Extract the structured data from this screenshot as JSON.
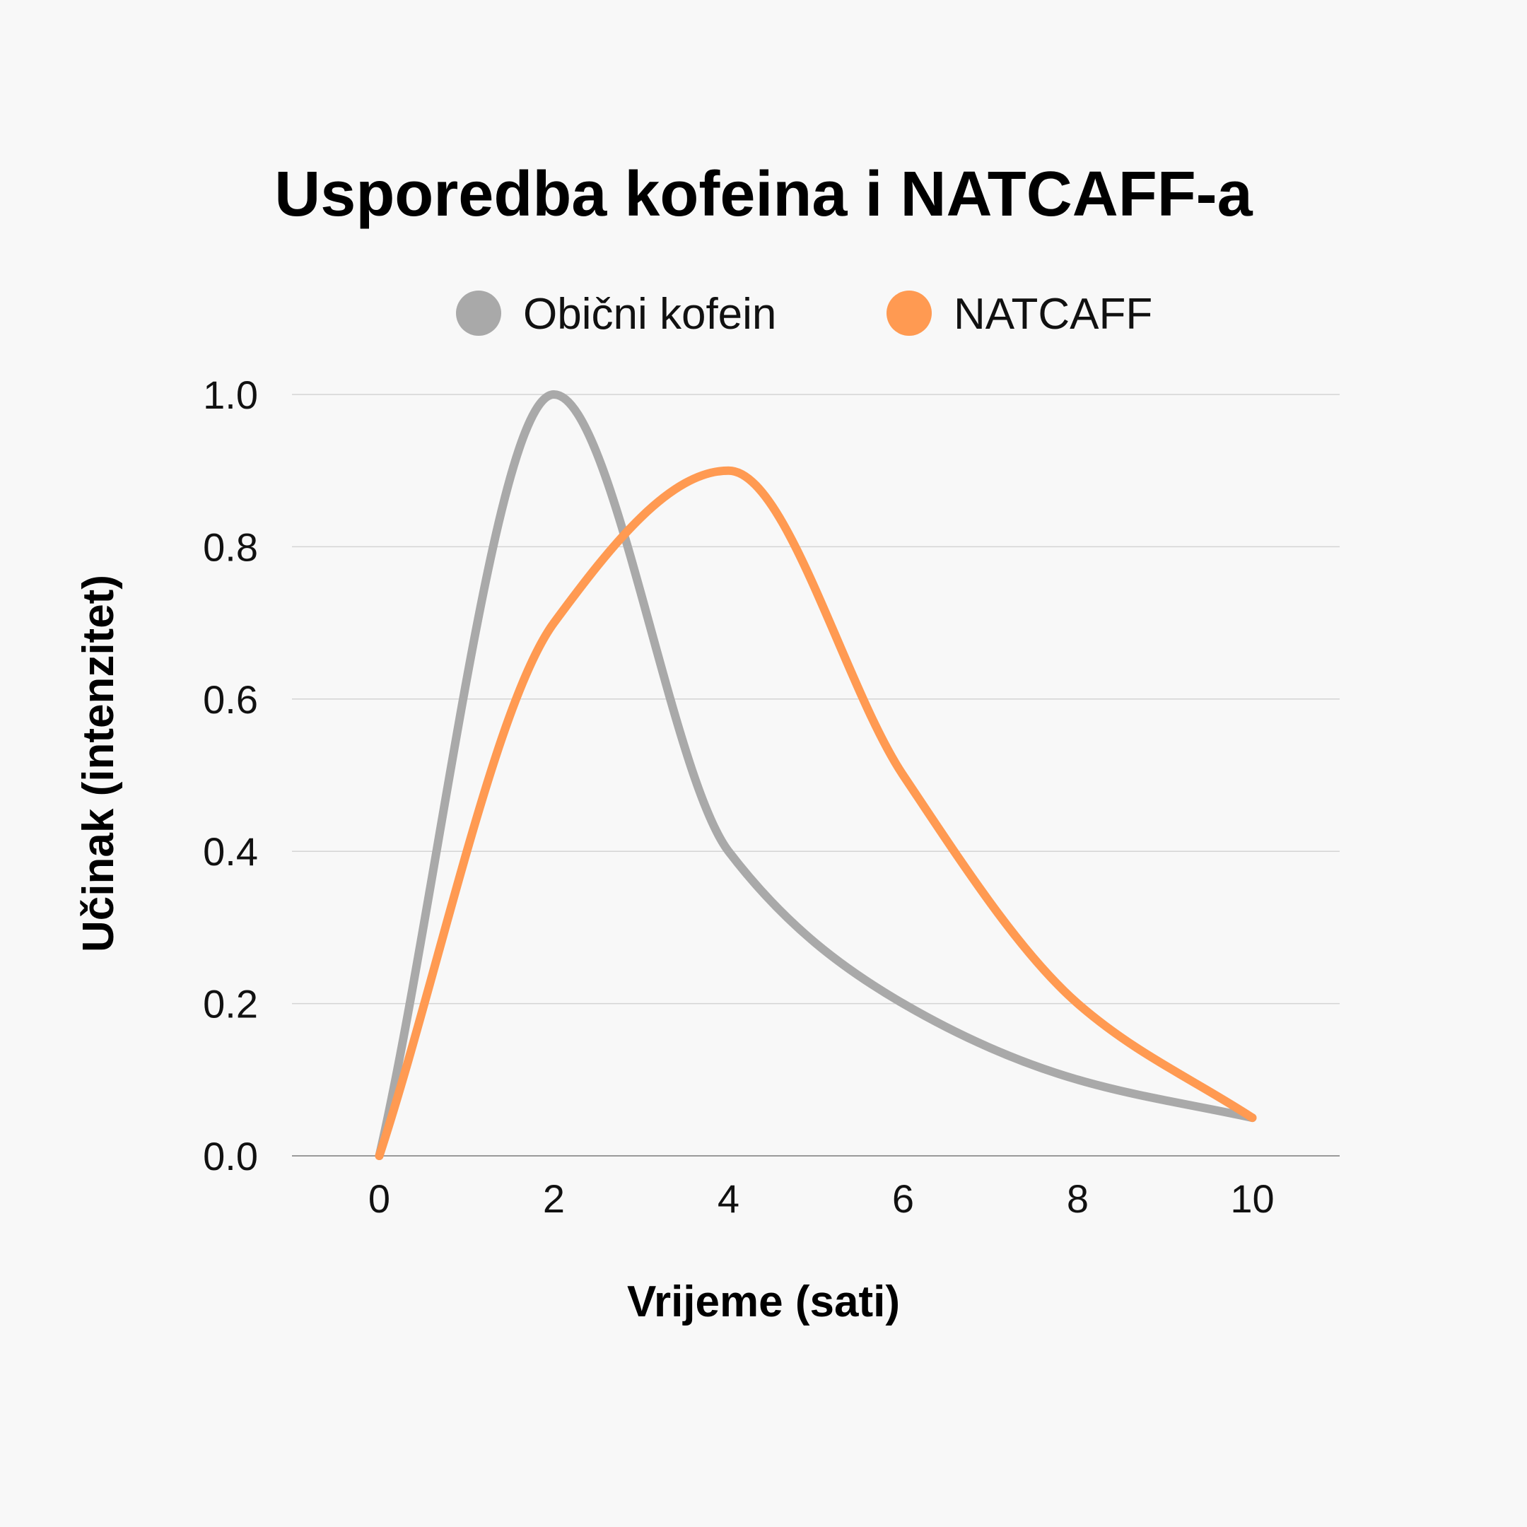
{
  "chart_data": {
    "type": "line",
    "title": "Usporedba kofeina i NATCAFF-a",
    "xlabel": "Vrijeme (sati)",
    "ylabel": "Učinak (intenzitet)",
    "x": [
      0,
      2,
      4,
      6,
      8,
      10
    ],
    "xticks": [
      "0",
      "2",
      "4",
      "6",
      "8",
      "10"
    ],
    "yticks": [
      "0.0",
      "0.2",
      "0.4",
      "0.6",
      "0.8",
      "1.0"
    ],
    "xlim": [
      -1,
      11
    ],
    "ylim": [
      0,
      1
    ],
    "grid": true,
    "legend_position": "top-center",
    "series": [
      {
        "name": "Obični kofein",
        "color": "#a9a9a9",
        "values": [
          0.0,
          1.0,
          0.4,
          0.2,
          0.1,
          0.05
        ]
      },
      {
        "name": "NATCAFF",
        "color": "#ff9a52",
        "values": [
          0.0,
          0.7,
          0.9,
          0.5,
          0.2,
          0.05
        ]
      }
    ]
  }
}
